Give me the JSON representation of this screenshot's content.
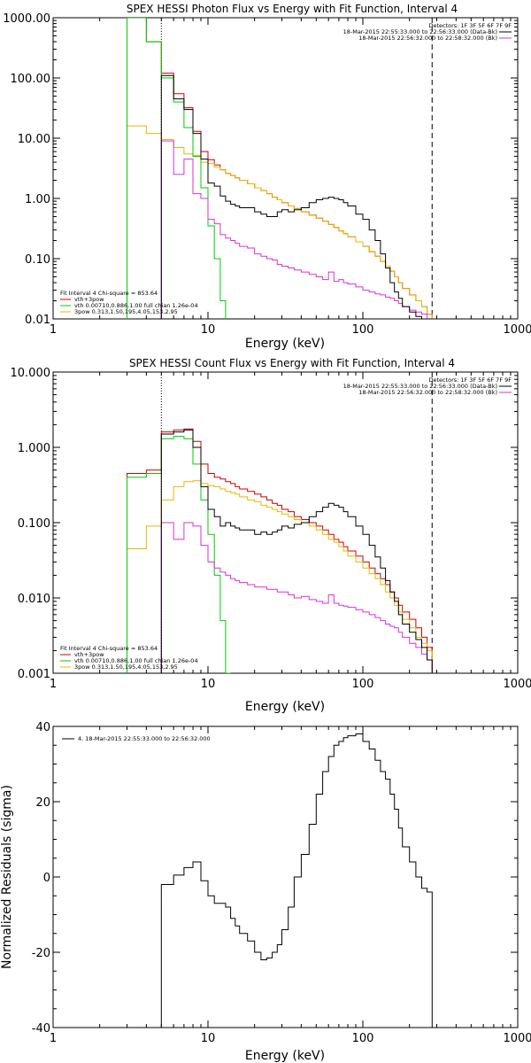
{
  "chart_data": [
    {
      "type": "line",
      "title": "SPEX HESSI Photon Flux vs Energy with Fit Function, Interval 4",
      "xlabel": "Energy (keV)",
      "ylabel": "",
      "xscale": "log",
      "yscale": "log",
      "xlim": [
        1,
        1000
      ],
      "ylim": [
        0.01,
        1000
      ],
      "x_ticks": [
        "1",
        "10",
        "100",
        "1000"
      ],
      "y_ticks": [
        "0.01",
        "0.10",
        "1.00",
        "10.00",
        "100.00",
        "1000.00"
      ],
      "legend_top_right": {
        "detectors": "Detectors: 1F 3F 5F 6F 7F 9F",
        "entries": [
          {
            "label": "18-Mar-2015 22:55:33.000 to 22:56:33.000 (Data-Bk)",
            "color": "#000000"
          },
          {
            "label": "18-Mar-2015 22:56:32.000 to 22:58:32.000 (Bk)",
            "color": "#d633d6"
          }
        ]
      },
      "legend_bottom_left": {
        "header": "Fit Interval  4    Chi-square = 853.64",
        "entries": [
          {
            "label": "vth+3pow",
            "color": "#cc0000"
          },
          {
            "label": "vth 0.00710,0.886,1.00   full chian 1.26e-04",
            "color": "#00cc00"
          },
          {
            "label": "3pow 0.313,1.50,195,4.05,153,2.95",
            "color": "#e6b800"
          }
        ]
      },
      "markers": {
        "dotted_x": 5,
        "dashed_x": 280
      },
      "series": [
        {
          "name": "Data-Bk",
          "color": "#000000",
          "edges": [
            5,
            6,
            7,
            8,
            9,
            10,
            11,
            12,
            13,
            14,
            15,
            16,
            18,
            20,
            22,
            24,
            26,
            28,
            30,
            33,
            36,
            40,
            45,
            50,
            55,
            60,
            65,
            70,
            75,
            80,
            90,
            100,
            110,
            120,
            130,
            140,
            150,
            160,
            170,
            180,
            200,
            220,
            240,
            260,
            280
          ],
          "values": [
            110,
            45,
            30,
            12,
            4.5,
            1.8,
            1.6,
            1.1,
            0.9,
            0.8,
            0.75,
            0.7,
            0.7,
            0.6,
            0.55,
            0.5,
            0.5,
            0.6,
            0.65,
            0.6,
            0.65,
            0.7,
            0.85,
            0.95,
            1.0,
            1.05,
            1.0,
            0.95,
            0.85,
            0.75,
            0.55,
            0.45,
            0.3,
            0.2,
            0.12,
            0.07,
            0.04,
            0.028,
            0.022,
            0.016,
            0.013,
            0.011,
            0.01,
            0.007
          ]
        },
        {
          "name": "Bk",
          "color": "#d633d6",
          "edges": [
            5,
            6,
            7,
            8,
            9,
            10,
            11,
            12,
            13,
            14,
            15,
            16,
            18,
            20,
            22,
            24,
            26,
            28,
            30,
            33,
            36,
            40,
            45,
            50,
            55,
            60,
            65,
            70,
            75,
            80,
            90,
            100,
            110,
            120,
            130,
            140,
            150,
            160,
            170,
            180,
            200,
            220,
            240,
            260,
            280
          ],
          "values": [
            9.0,
            2.5,
            4.5,
            1.2,
            1.0,
            0.45,
            0.38,
            0.25,
            0.22,
            0.2,
            0.18,
            0.16,
            0.15,
            0.12,
            0.11,
            0.1,
            0.095,
            0.08,
            0.075,
            0.07,
            0.065,
            0.06,
            0.055,
            0.05,
            0.045,
            0.06,
            0.042,
            0.045,
            0.04,
            0.038,
            0.034,
            0.03,
            0.028,
            0.026,
            0.025,
            0.023,
            0.022,
            0.02,
            0.018,
            0.016,
            0.014,
            0.013,
            0.012,
            0.01
          ]
        },
        {
          "name": "vth+3pow",
          "color": "#cc0000",
          "edges": [
            3,
            4,
            5,
            6,
            7,
            8,
            9,
            10,
            11,
            12,
            13,
            14,
            15,
            16,
            18,
            20,
            22,
            24,
            26,
            28,
            30,
            33,
            36,
            40,
            45,
            50,
            55,
            60,
            65,
            70,
            75,
            80,
            90,
            100,
            110,
            120,
            130,
            140,
            150,
            160,
            170,
            180,
            200,
            220,
            240,
            260,
            280
          ],
          "values": [
            1200,
            400,
            120,
            55,
            32,
            13,
            6,
            4.4,
            3.6,
            3.0,
            2.6,
            2.4,
            2.2,
            2.0,
            1.75,
            1.5,
            1.35,
            1.2,
            1.05,
            0.95,
            0.85,
            0.75,
            0.68,
            0.6,
            0.53,
            0.47,
            0.42,
            0.37,
            0.33,
            0.29,
            0.26,
            0.23,
            0.19,
            0.16,
            0.13,
            0.11,
            0.09,
            0.075,
            0.062,
            0.05,
            0.04,
            0.032,
            0.025,
            0.02,
            0.016,
            0.012
          ]
        },
        {
          "name": "vth",
          "color": "#00cc00",
          "edges": [
            3,
            4,
            5,
            6,
            7,
            8,
            9,
            10,
            11,
            12,
            13
          ],
          "values": [
            1000,
            400,
            100,
            40,
            15,
            5,
            1.5,
            0.35,
            0.1,
            0.02
          ]
        },
        {
          "name": "3pow",
          "color": "#e6b800",
          "edges": [
            3,
            4,
            5,
            6,
            7,
            8,
            9,
            10,
            11,
            12,
            13,
            14,
            15,
            16,
            18,
            20,
            22,
            24,
            26,
            28,
            30,
            33,
            36,
            40,
            45,
            50,
            55,
            60,
            65,
            70,
            75,
            80,
            90,
            100,
            110,
            120,
            130,
            140,
            150,
            160,
            170,
            180,
            200,
            220,
            240,
            260,
            280
          ],
          "values": [
            16,
            12,
            9.5,
            7.0,
            5.5,
            5.2,
            4.0,
            3.8,
            3.3,
            3.0,
            2.6,
            2.4,
            2.2,
            2.0,
            1.75,
            1.5,
            1.35,
            1.2,
            1.05,
            0.95,
            0.85,
            0.75,
            0.68,
            0.6,
            0.53,
            0.47,
            0.42,
            0.37,
            0.33,
            0.29,
            0.26,
            0.23,
            0.19,
            0.16,
            0.13,
            0.11,
            0.09,
            0.075,
            0.062,
            0.05,
            0.04,
            0.032,
            0.025,
            0.02,
            0.016,
            0.012
          ]
        }
      ]
    },
    {
      "type": "line",
      "title": "SPEX HESSI Count Flux vs Energy with Fit Function, Interval 4",
      "xlabel": "Energy (keV)",
      "ylabel": "",
      "xscale": "log",
      "yscale": "log",
      "xlim": [
        1,
        1000
      ],
      "ylim": [
        0.001,
        10
      ],
      "x_ticks": [
        "1",
        "10",
        "100",
        "1000"
      ],
      "y_ticks": [
        "0.001",
        "0.010",
        "0.100",
        "1.000",
        "10.000"
      ],
      "legend_top_right": {
        "detectors": "Detectors: 1F 3F 5F 6F 7F 9F",
        "entries": [
          {
            "label": "18-Mar-2015 22:55:33.000 to 22:56:33.000 (Data-Bk)",
            "color": "#000000"
          },
          {
            "label": "18-Mar-2015 22:56:32.000 to 22:58:32.000 (Bk)",
            "color": "#d633d6"
          }
        ]
      },
      "legend_bottom_left": {
        "header": "Fit Interval  4    Chi-square = 853.64",
        "entries": [
          {
            "label": "vth+3pow",
            "color": "#cc0000"
          },
          {
            "label": "vth 0.00710,0.886,1.00   full chian 1.26e-04",
            "color": "#00cc00"
          },
          {
            "label": "3pow 0.313,1.50,195,4.05,153,2.95",
            "color": "#e6b800"
          }
        ]
      },
      "markers": {
        "dotted_x": 5,
        "dashed_x": 280
      },
      "series": [
        {
          "name": "Data-Bk",
          "color": "#000000",
          "edges": [
            5,
            6,
            7,
            8,
            9,
            10,
            11,
            12,
            13,
            14,
            15,
            16,
            18,
            20,
            22,
            24,
            26,
            28,
            30,
            33,
            36,
            40,
            45,
            50,
            55,
            60,
            65,
            70,
            75,
            80,
            90,
            100,
            110,
            120,
            130,
            140,
            150,
            160,
            170,
            180,
            200,
            220,
            240,
            260,
            280
          ],
          "values": [
            1.5,
            1.6,
            1.7,
            1.0,
            0.3,
            0.15,
            0.12,
            0.09,
            0.1,
            0.09,
            0.085,
            0.08,
            0.08,
            0.07,
            0.075,
            0.07,
            0.075,
            0.08,
            0.09,
            0.085,
            0.095,
            0.1,
            0.12,
            0.14,
            0.16,
            0.18,
            0.17,
            0.16,
            0.14,
            0.12,
            0.09,
            0.07,
            0.05,
            0.035,
            0.025,
            0.017,
            0.012,
            0.009,
            0.006,
            0.0045,
            0.0035,
            0.0028,
            0.0022,
            0.0015
          ]
        },
        {
          "name": "Bk",
          "color": "#d633d6",
          "edges": [
            5,
            6,
            7,
            8,
            9,
            10,
            11,
            12,
            13,
            14,
            15,
            16,
            18,
            20,
            22,
            24,
            26,
            28,
            30,
            33,
            36,
            40,
            45,
            50,
            55,
            60,
            65,
            70,
            75,
            80,
            90,
            100,
            110,
            120,
            130,
            140,
            150,
            160,
            170,
            180,
            200,
            220,
            240,
            260,
            280
          ],
          "values": [
            0.1,
            0.06,
            0.1,
            0.09,
            0.05,
            0.03,
            0.025,
            0.022,
            0.02,
            0.018,
            0.017,
            0.016,
            0.015,
            0.014,
            0.014,
            0.013,
            0.013,
            0.012,
            0.012,
            0.011,
            0.01,
            0.0105,
            0.0095,
            0.009,
            0.0085,
            0.011,
            0.0085,
            0.008,
            0.0078,
            0.0075,
            0.007,
            0.0065,
            0.006,
            0.0055,
            0.005,
            0.0045,
            0.0042,
            0.004,
            0.0035,
            0.003,
            0.0025,
            0.0022,
            0.0018,
            0.0015
          ]
        },
        {
          "name": "vth+3pow",
          "color": "#cc0000",
          "edges": [
            3,
            4,
            5,
            6,
            7,
            8,
            9,
            10,
            11,
            12,
            13,
            14,
            15,
            16,
            18,
            20,
            22,
            24,
            26,
            28,
            30,
            33,
            36,
            40,
            45,
            50,
            55,
            60,
            65,
            70,
            75,
            80,
            90,
            100,
            110,
            120,
            130,
            140,
            150,
            160,
            170,
            180,
            200,
            220,
            240,
            260,
            280
          ],
          "values": [
            0.45,
            0.5,
            1.6,
            1.7,
            1.75,
            1.2,
            0.6,
            0.45,
            0.4,
            0.38,
            0.35,
            0.33,
            0.3,
            0.28,
            0.26,
            0.24,
            0.22,
            0.2,
            0.18,
            0.17,
            0.15,
            0.14,
            0.12,
            0.11,
            0.1,
            0.09,
            0.08,
            0.07,
            0.06,
            0.055,
            0.048,
            0.042,
            0.036,
            0.03,
            0.025,
            0.021,
            0.018,
            0.015,
            0.012,
            0.01,
            0.008,
            0.0065,
            0.0052,
            0.004,
            0.003,
            0.0022
          ]
        },
        {
          "name": "vth",
          "color": "#00cc00",
          "edges": [
            3,
            4,
            5,
            6,
            7,
            8,
            9,
            10,
            11,
            12,
            13,
            14
          ],
          "values": [
            0.4,
            0.45,
            1.3,
            1.4,
            1.3,
            0.6,
            0.2,
            0.07,
            0.02,
            0.005,
            0.001
          ]
        },
        {
          "name": "3pow",
          "color": "#e6b800",
          "edges": [
            3,
            4,
            5,
            6,
            7,
            8,
            9,
            10,
            11,
            12,
            13,
            14,
            15,
            16,
            18,
            20,
            22,
            24,
            26,
            28,
            30,
            33,
            36,
            40,
            45,
            50,
            55,
            60,
            65,
            70,
            75,
            80,
            90,
            100,
            110,
            120,
            130,
            140,
            150,
            160,
            170,
            180,
            200,
            220,
            240,
            260,
            280
          ],
          "values": [
            0.045,
            0.09,
            0.2,
            0.3,
            0.35,
            0.36,
            0.33,
            0.31,
            0.3,
            0.28,
            0.26,
            0.25,
            0.24,
            0.22,
            0.2,
            0.19,
            0.17,
            0.16,
            0.15,
            0.14,
            0.13,
            0.12,
            0.11,
            0.1,
            0.09,
            0.08,
            0.07,
            0.06,
            0.055,
            0.048,
            0.042,
            0.036,
            0.03,
            0.025,
            0.021,
            0.018,
            0.015,
            0.012,
            0.01,
            0.008,
            0.0065,
            0.0052,
            0.004,
            0.003,
            0.0025,
            0.002
          ]
        }
      ]
    },
    {
      "type": "line",
      "title": "",
      "xlabel": "Energy (keV)",
      "ylabel": "Normalized Residuals (sigma)",
      "xscale": "log",
      "yscale": "linear",
      "xlim": [
        1,
        1000
      ],
      "ylim": [
        -40,
        40
      ],
      "x_ticks": [
        "1",
        "10",
        "100",
        "1000"
      ],
      "y_ticks": [
        "-40",
        "-20",
        "0",
        "20",
        "40"
      ],
      "legend": {
        "label": "4. 18-Mar-2015 22:55:33.000 to 22:56:32.000",
        "color": "#000000"
      },
      "series": [
        {
          "name": "4. 18-Mar-2015 22:55:33.000 to 22:56:32.000",
          "color": "#000000",
          "edges": [
            5,
            6,
            7,
            8,
            9,
            10,
            11,
            12,
            13,
            14,
            15,
            16,
            18,
            20,
            22,
            24,
            26,
            28,
            30,
            33,
            36,
            40,
            45,
            50,
            55,
            60,
            65,
            70,
            75,
            80,
            90,
            100,
            110,
            120,
            130,
            140,
            150,
            160,
            170,
            180,
            200,
            220,
            240,
            260,
            280
          ],
          "values": [
            -2,
            0.5,
            2.5,
            4,
            -1,
            -5,
            -7,
            -7,
            -8,
            -11,
            -13,
            -15,
            -17,
            -20,
            -22,
            -21.5,
            -20,
            -18,
            -14,
            -8,
            0,
            6,
            14,
            22,
            28,
            32,
            35,
            36,
            37,
            37.5,
            38,
            36,
            34,
            31,
            28,
            26,
            22,
            18,
            13,
            8,
            4,
            0,
            -3,
            -4
          ]
        }
      ]
    }
  ]
}
